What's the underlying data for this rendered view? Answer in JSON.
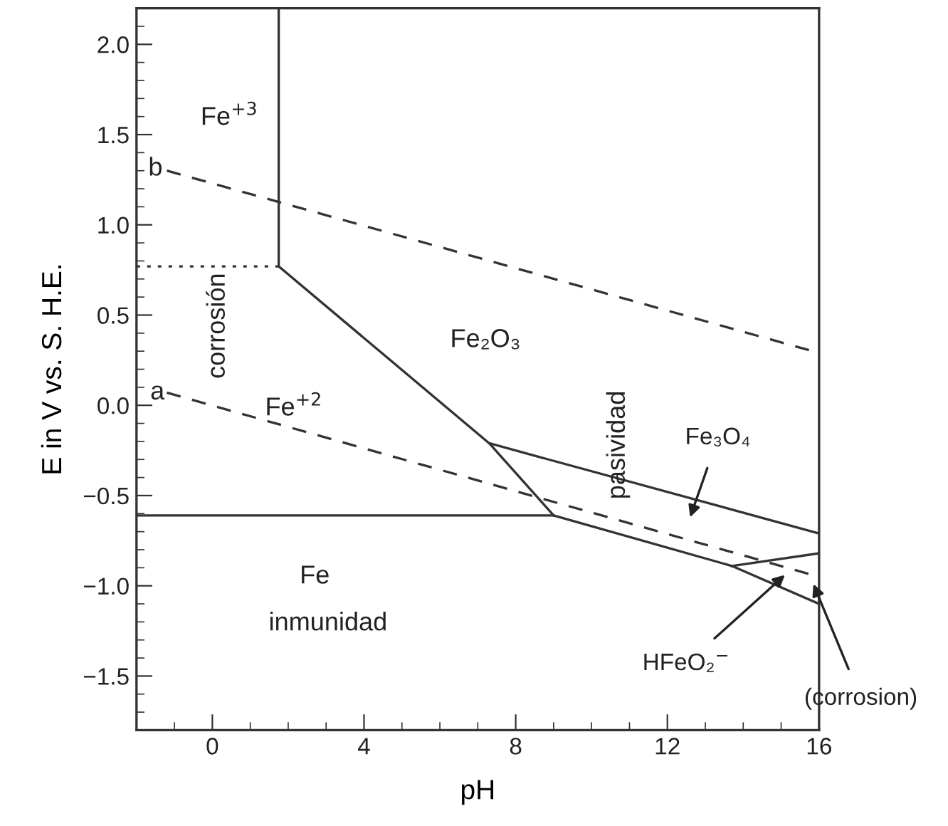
{
  "chart_data": {
    "type": "line",
    "xlabel": "pH",
    "ylabel": "E in V vs. S. H.E.",
    "xlim": [
      -2,
      16
    ],
    "ylim": [
      -1.8,
      2.2
    ],
    "xticks": [
      0,
      4,
      8,
      12,
      16
    ],
    "yticks": [
      {
        "value": -1.5,
        "label": "−1.5"
      },
      {
        "value": -1.0,
        "label": "−1.0"
      },
      {
        "value": -0.5,
        "label": "−0.5"
      },
      {
        "value": 0.0,
        "label": "0.0"
      },
      {
        "value": 0.5,
        "label": "0.5"
      },
      {
        "value": 1.0,
        "label": "1.0"
      },
      {
        "value": 1.5,
        "label": "1.5"
      },
      {
        "value": 2.0,
        "label": "2.0"
      }
    ],
    "grid": false,
    "legend": false,
    "marker": "none",
    "series": [
      {
        "color": "#333333",
        "line_style": "solid",
        "x": [
          1.75,
          1.75
        ],
        "values": [
          2.2,
          0.77
        ]
      },
      {
        "color": "#333333",
        "line_style": "dotted",
        "x": [
          -2,
          1.75
        ],
        "values": [
          0.77,
          0.77
        ]
      },
      {
        "color": "#333333",
        "line_style": "solid",
        "x": [
          1.75,
          7.3,
          9.0
        ],
        "values": [
          0.77,
          -0.21,
          -0.61
        ]
      },
      {
        "color": "#333333",
        "line_style": "solid",
        "x": [
          -2,
          9.0,
          13.7,
          16
        ],
        "values": [
          -0.61,
          -0.61,
          -0.89,
          -1.1
        ]
      },
      {
        "color": "#333333",
        "line_style": "solid",
        "x": [
          7.3,
          16
        ],
        "values": [
          -0.21,
          -0.71
        ]
      },
      {
        "color": "#333333",
        "line_style": "solid",
        "x": [
          13.7,
          16
        ],
        "values": [
          -0.89,
          -0.82
        ]
      },
      {
        "color": "#333333",
        "line_style": "dashed",
        "x": [
          -1.2,
          16
        ],
        "values": [
          1.3,
          0.29
        ]
      },
      {
        "color": "#333333",
        "line_style": "dashed",
        "x": [
          -1.2,
          16
        ],
        "values": [
          0.07,
          -0.95
        ]
      }
    ],
    "annotations": [
      "Fe$^{+3}$",
      "b",
      "corrosión",
      "Fe$^{+2}$",
      "a",
      "Fe₂O₃",
      "pasividad",
      "Fe",
      "inmunidad",
      "Fe₃O₄",
      "HFeO₂$^{−}$",
      "(corrosion)"
    ]
  }
}
